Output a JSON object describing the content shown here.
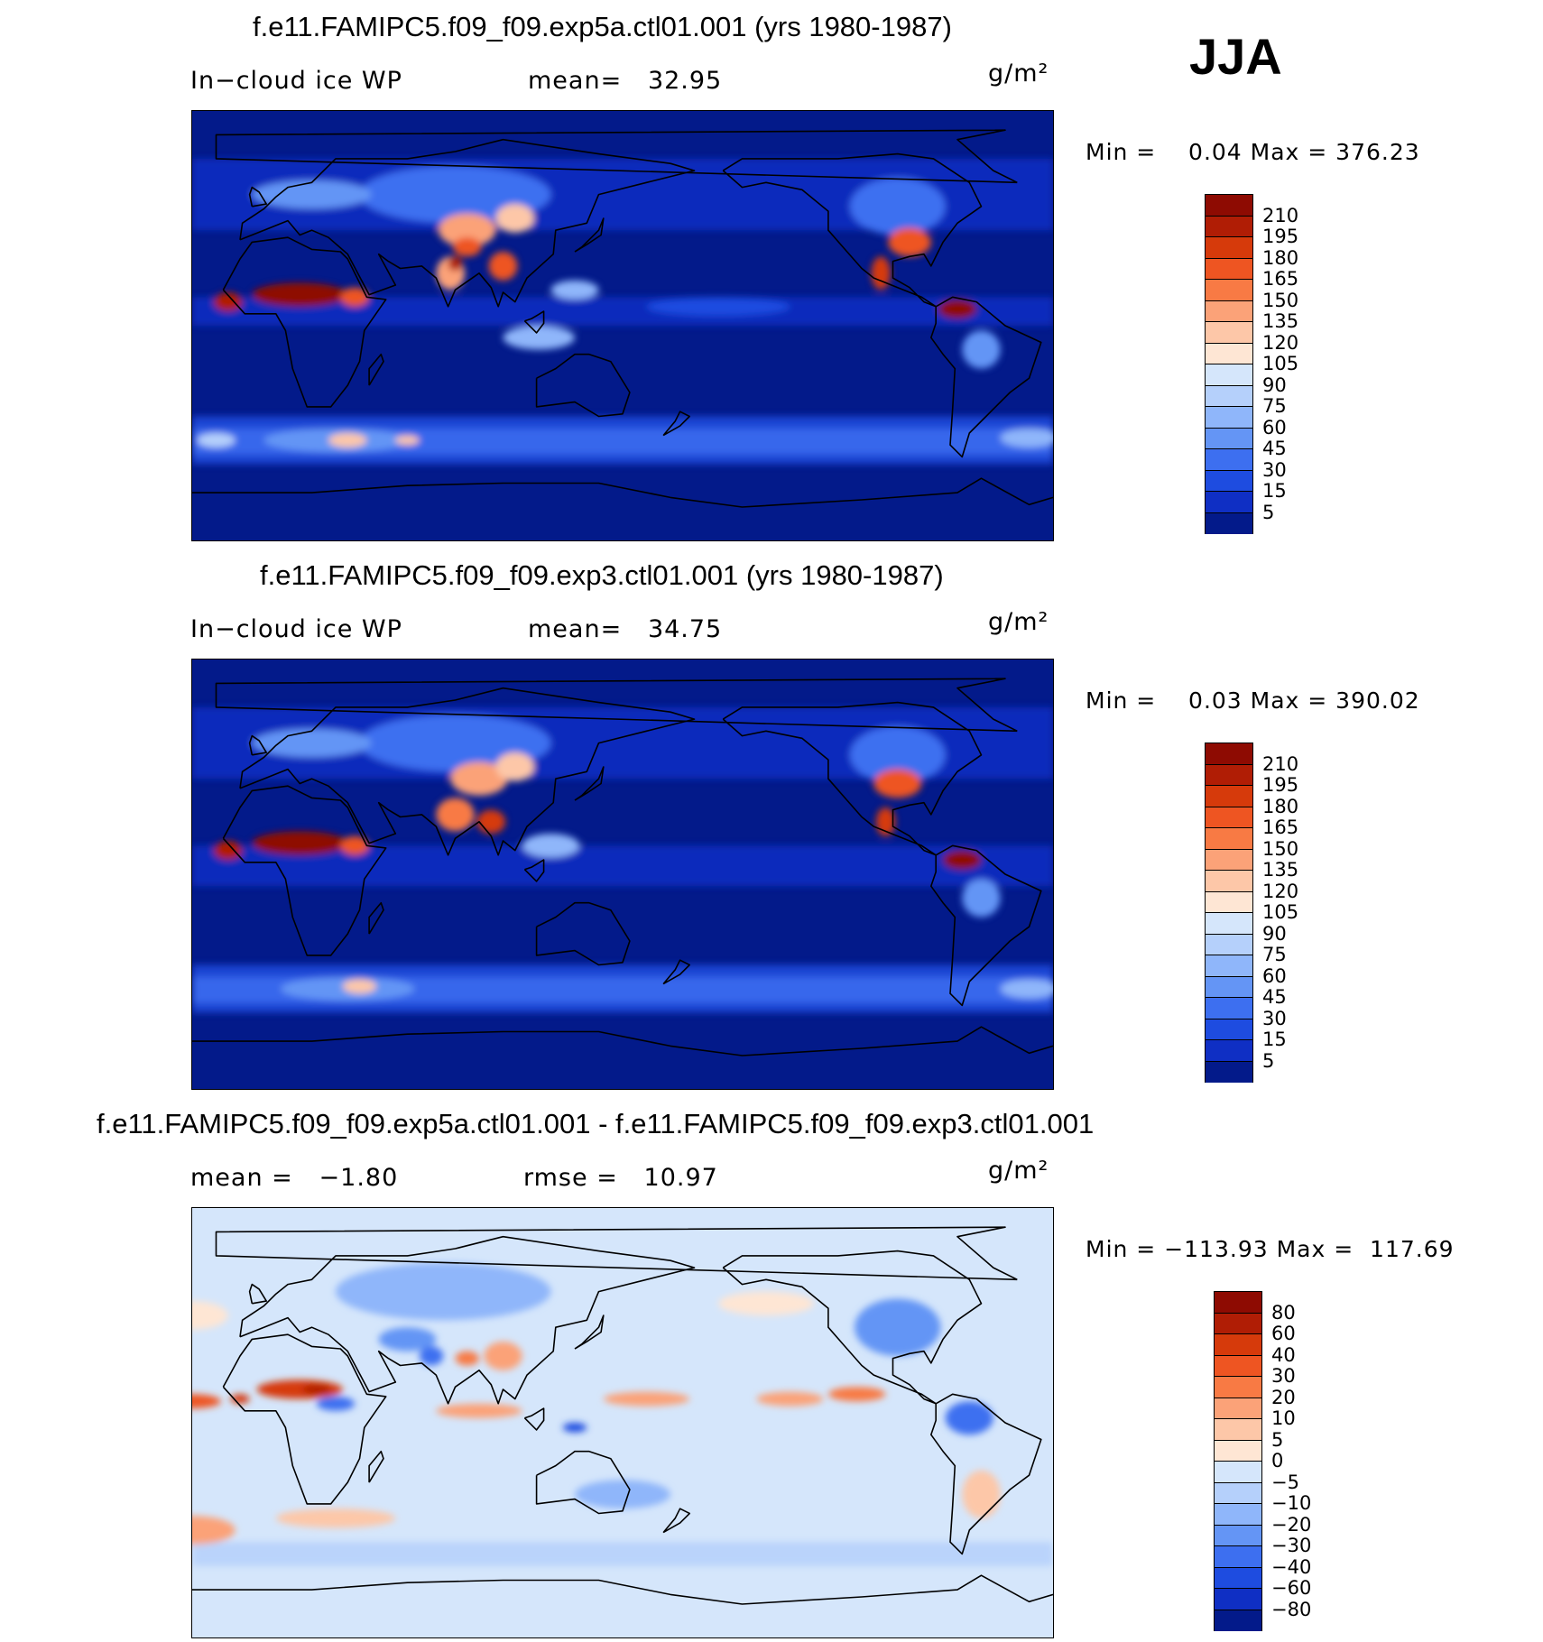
{
  "season": "JJA",
  "panels": [
    {
      "title": "f.e11.FAMIPC5.f09_f09.exp5a.ctl01.001 (yrs 1980-1987)",
      "left_label": "In−cloud ice WP",
      "center_label": "mean=   32.95",
      "units": "g/m²",
      "minmax": "Min =    0.04 Max = 376.23",
      "colorbar": {
        "labels": [
          "210",
          "195",
          "180",
          "165",
          "150",
          "135",
          "120",
          "105",
          "90",
          "75",
          "60",
          "45",
          "30",
          "15",
          "5"
        ],
        "colors": [
          "#8e0b02",
          "#b01d05",
          "#d63a0b",
          "#ee5522",
          "#f87a44",
          "#fba278",
          "#fdc7a8",
          "#fee6d4",
          "#d5e6fb",
          "#b5d0fb",
          "#8fb6fa",
          "#6495f5",
          "#3d6ff0",
          "#1e4ce0",
          "#0f2fc4",
          "#031a8a"
        ]
      },
      "map": {
        "ocean_color": "#031a8a",
        "features": [
          {
            "type": "band",
            "color": "#1e4ce0",
            "lat": [
              -58,
              -38
            ]
          },
          {
            "type": "band",
            "color": "#3d6ff0",
            "lat": [
              -54,
              -43
            ]
          },
          {
            "type": "band",
            "color": "#0f2fc4",
            "lat": [
              40,
              70
            ]
          },
          {
            "type": "band",
            "color": "#0f2fc4",
            "lat": [
              0,
              12
            ]
          },
          {
            "type": "blob",
            "color": "#1e4ce0",
            "lon": -170,
            "lat": 8,
            "rx": 30,
            "ry": 4
          },
          {
            "type": "blob",
            "color": "#6495f5",
            "lon": 30,
            "lat": -48,
            "rx": 30,
            "ry": 5
          },
          {
            "type": "blob",
            "color": "#fdc7a8",
            "lon": 35,
            "lat": -48,
            "rx": 8,
            "ry": 3
          },
          {
            "type": "blob",
            "color": "#fdc7a8",
            "lon": 60,
            "lat": -48,
            "rx": 5,
            "ry": 2
          },
          {
            "type": "blob",
            "color": "#8fb6fa",
            "lon": -40,
            "lat": -47,
            "rx": 12,
            "ry": 4
          },
          {
            "type": "blob",
            "color": "#b5d0fb",
            "lon": -20,
            "lat": -48,
            "rx": 8,
            "ry": 3
          },
          {
            "type": "blob",
            "color": "#3d6ff0",
            "lon": 80,
            "lat": 55,
            "rx": 40,
            "ry": 12
          },
          {
            "type": "blob",
            "color": "#6495f5",
            "lon": 20,
            "lat": 55,
            "rx": 25,
            "ry": 6
          },
          {
            "type": "blob",
            "color": "#fba278",
            "lon": 85,
            "lat": 40,
            "rx": 12,
            "ry": 7
          },
          {
            "type": "blob",
            "color": "#ee5522",
            "lon": 85,
            "lat": 33,
            "rx": 6,
            "ry": 4
          },
          {
            "type": "blob",
            "color": "#fdc7a8",
            "lon": 105,
            "lat": 45,
            "rx": 8,
            "ry": 6
          },
          {
            "type": "blob",
            "color": "#fba278",
            "lon": 78,
            "lat": 22,
            "rx": 6,
            "ry": 7
          },
          {
            "type": "blob",
            "color": "#b01d05",
            "lon": 80,
            "lat": 26,
            "rx": 3,
            "ry": 3
          },
          {
            "type": "blob",
            "color": "#ee5522",
            "lon": 100,
            "lat": 25,
            "rx": 6,
            "ry": 6
          },
          {
            "type": "blob",
            "color": "#8e0b02",
            "lon": 15,
            "lat": 13,
            "rx": 20,
            "ry": 5
          },
          {
            "type": "blob",
            "color": "#ee5522",
            "lon": 38,
            "lat": 12,
            "rx": 6,
            "ry": 4
          },
          {
            "type": "blob",
            "color": "#8fb6fa",
            "lon": 130,
            "lat": 15,
            "rx": 10,
            "ry": 4
          },
          {
            "type": "blob",
            "color": "#3d6ff0",
            "lon": -95,
            "lat": 50,
            "rx": 20,
            "ry": 12
          },
          {
            "type": "blob",
            "color": "#ee5522",
            "lon": -90,
            "lat": 35,
            "rx": 9,
            "ry": 6
          },
          {
            "type": "blob",
            "color": "#d63a0b",
            "lon": -102,
            "lat": 22,
            "rx": 4,
            "ry": 7
          },
          {
            "type": "blob",
            "color": "#8e0b02",
            "lon": -70,
            "lat": 7,
            "rx": 8,
            "ry": 4
          },
          {
            "type": "blob",
            "color": "#6495f5",
            "lon": -60,
            "lat": -10,
            "rx": 8,
            "ry": 8
          },
          {
            "type": "blob",
            "color": "#b01d05",
            "lon": -15,
            "lat": 10,
            "rx": 6,
            "ry": 4
          },
          {
            "type": "blob",
            "color": "#8fb6fa",
            "lon": 115,
            "lat": -5,
            "rx": 15,
            "ry": 5
          }
        ]
      }
    },
    {
      "title": "f.e11.FAMIPC5.f09_f09.exp3.ctl01.001 (yrs 1980-1987)",
      "left_label": "In−cloud ice WP",
      "center_label": "mean=   34.75",
      "units": "g/m²",
      "minmax": "Min =    0.03 Max = 390.02",
      "colorbar": {
        "labels": [
          "210",
          "195",
          "180",
          "165",
          "150",
          "135",
          "120",
          "105",
          "90",
          "75",
          "60",
          "45",
          "30",
          "15",
          "5"
        ],
        "colors": [
          "#8e0b02",
          "#b01d05",
          "#d63a0b",
          "#ee5522",
          "#f87a44",
          "#fba278",
          "#fdc7a8",
          "#fee6d4",
          "#d5e6fb",
          "#b5d0fb",
          "#8fb6fa",
          "#6495f5",
          "#3d6ff0",
          "#1e4ce0",
          "#0f2fc4",
          "#031a8a"
        ]
      },
      "map": {
        "ocean_color": "#031a8a",
        "features": [
          {
            "type": "band",
            "color": "#1e4ce0",
            "lat": [
              -58,
              -38
            ]
          },
          {
            "type": "band",
            "color": "#3d6ff0",
            "lat": [
              -54,
              -43
            ]
          },
          {
            "type": "band",
            "color": "#0f2fc4",
            "lat": [
              40,
              70
            ]
          },
          {
            "type": "band",
            "color": "#0f2fc4",
            "lat": [
              -5,
              12
            ]
          },
          {
            "type": "blob",
            "color": "#6495f5",
            "lon": 35,
            "lat": -48,
            "rx": 28,
            "ry": 5
          },
          {
            "type": "blob",
            "color": "#fdc7a8",
            "lon": 40,
            "lat": -47,
            "rx": 7,
            "ry": 3
          },
          {
            "type": "blob",
            "color": "#8fb6fa",
            "lon": -40,
            "lat": -48,
            "rx": 12,
            "ry": 4
          },
          {
            "type": "blob",
            "color": "#3d6ff0",
            "lon": 80,
            "lat": 55,
            "rx": 40,
            "ry": 12
          },
          {
            "type": "blob",
            "color": "#6495f5",
            "lon": 20,
            "lat": 55,
            "rx": 25,
            "ry": 6
          },
          {
            "type": "blob",
            "color": "#fba278",
            "lon": 90,
            "lat": 40,
            "rx": 12,
            "ry": 7
          },
          {
            "type": "blob",
            "color": "#fdc7a8",
            "lon": 105,
            "lat": 45,
            "rx": 8,
            "ry": 6
          },
          {
            "type": "blob",
            "color": "#f87a44",
            "lon": 80,
            "lat": 25,
            "rx": 8,
            "ry": 7
          },
          {
            "type": "blob",
            "color": "#d63a0b",
            "lon": 95,
            "lat": 22,
            "rx": 6,
            "ry": 5
          },
          {
            "type": "blob",
            "color": "#8e0b02",
            "lon": 15,
            "lat": 13,
            "rx": 20,
            "ry": 5
          },
          {
            "type": "blob",
            "color": "#ee5522",
            "lon": 38,
            "lat": 12,
            "rx": 6,
            "ry": 4
          },
          {
            "type": "blob",
            "color": "#8fb6fa",
            "lon": 120,
            "lat": 12,
            "rx": 12,
            "ry": 5
          },
          {
            "type": "blob",
            "color": "#3d6ff0",
            "lon": -95,
            "lat": 50,
            "rx": 20,
            "ry": 12
          },
          {
            "type": "blob",
            "color": "#ee5522",
            "lon": -95,
            "lat": 38,
            "rx": 10,
            "ry": 6
          },
          {
            "type": "blob",
            "color": "#d63a0b",
            "lon": -100,
            "lat": 22,
            "rx": 4,
            "ry": 6
          },
          {
            "type": "blob",
            "color": "#8e0b02",
            "lon": -68,
            "lat": 6,
            "rx": 8,
            "ry": 4
          },
          {
            "type": "blob",
            "color": "#6495f5",
            "lon": -60,
            "lat": -10,
            "rx": 8,
            "ry": 8
          },
          {
            "type": "blob",
            "color": "#b01d05",
            "lon": -15,
            "lat": 10,
            "rx": 6,
            "ry": 4
          }
        ]
      }
    },
    {
      "title": "f.e11.FAMIPC5.f09_f09.exp5a.ctl01.001 - f.e11.FAMIPC5.f09_f09.exp3.ctl01.001",
      "left_label": "mean =   −1.80",
      "center_label": "rmse =   10.97",
      "units": "g/m²",
      "minmax": "Min = −113.93 Max =  117.69",
      "colorbar": {
        "labels": [
          "80",
          "60",
          "40",
          "30",
          "20",
          "10",
          "5",
          "0",
          "−5",
          "−10",
          "−20",
          "−30",
          "−40",
          "−60",
          "−80"
        ],
        "colors": [
          "#8e0b02",
          "#b01d05",
          "#d63a0b",
          "#ee5522",
          "#f87a44",
          "#fba278",
          "#fdc7a8",
          "#fee6d4",
          "#d5e6fb",
          "#b5d0fb",
          "#8fb6fa",
          "#6495f5",
          "#3d6ff0",
          "#1e4ce0",
          "#0f2fc4",
          "#031a8a"
        ]
      },
      "map": {
        "ocean_color": "#d5e6fb",
        "features": [
          {
            "type": "band",
            "color": "#b5d0fb",
            "lat": [
              -60,
              -50
            ]
          },
          {
            "type": "blob",
            "color": "#8fb6fa",
            "lon": 75,
            "lat": 55,
            "rx": 45,
            "ry": 12
          },
          {
            "type": "blob",
            "color": "#6495f5",
            "lon": 60,
            "lat": 35,
            "rx": 12,
            "ry": 5
          },
          {
            "type": "blob",
            "color": "#3d6ff0",
            "lon": 70,
            "lat": 28,
            "rx": 5,
            "ry": 4
          },
          {
            "type": "blob",
            "color": "#d63a0b",
            "lon": 15,
            "lat": 14,
            "rx": 18,
            "ry": 4
          },
          {
            "type": "blob",
            "color": "#b01d05",
            "lon": 22,
            "lat": 14,
            "rx": 6,
            "ry": 2
          },
          {
            "type": "blob",
            "color": "#3d6ff0",
            "lon": 30,
            "lat": 8,
            "rx": 8,
            "ry": 3
          },
          {
            "type": "blob",
            "color": "#f87a44",
            "lon": 85,
            "lat": 27,
            "rx": 5,
            "ry": 3
          },
          {
            "type": "blob",
            "color": "#fba278",
            "lon": 100,
            "lat": 28,
            "rx": 8,
            "ry": 6
          },
          {
            "type": "blob",
            "color": "#fba278",
            "lon": 160,
            "lat": 10,
            "rx": 18,
            "ry": 3
          },
          {
            "type": "blob",
            "color": "#fba278",
            "lon": -140,
            "lat": 10,
            "rx": 14,
            "ry": 3
          },
          {
            "type": "blob",
            "color": "#fba278",
            "lon": 90,
            "lat": 5,
            "rx": 18,
            "ry": 3
          },
          {
            "type": "blob",
            "color": "#f87a44",
            "lon": -112,
            "lat": 12,
            "rx": 12,
            "ry": 3
          },
          {
            "type": "blob",
            "color": "#ee5522",
            "lon": -30,
            "lat": 9,
            "rx": 12,
            "ry": 3
          },
          {
            "type": "blob",
            "color": "#d63a0b",
            "lon": -10,
            "lat": 10,
            "rx": 4,
            "ry": 2
          },
          {
            "type": "blob",
            "color": "#6495f5",
            "lon": -95,
            "lat": 40,
            "rx": 18,
            "ry": 12
          },
          {
            "type": "blob",
            "color": "#3d6ff0",
            "lon": -65,
            "lat": 2,
            "rx": 10,
            "ry": 7
          },
          {
            "type": "blob",
            "color": "#fba278",
            "lon": -30,
            "lat": -45,
            "rx": 18,
            "ry": 6
          },
          {
            "type": "blob",
            "color": "#fdc7a8",
            "lon": 30,
            "lat": -40,
            "rx": 25,
            "ry": 4
          },
          {
            "type": "blob",
            "color": "#fdc7a8",
            "lon": -60,
            "lat": -30,
            "rx": 8,
            "ry": 10
          },
          {
            "type": "blob",
            "color": "#8fb6fa",
            "lon": 150,
            "lat": -30,
            "rx": 20,
            "ry": 6
          },
          {
            "type": "blob",
            "color": "#fee6d4",
            "lon": -150,
            "lat": 50,
            "rx": 20,
            "ry": 5
          },
          {
            "type": "blob",
            "color": "#fee6d4",
            "lon": -30,
            "lat": 45,
            "rx": 15,
            "ry": 6
          },
          {
            "type": "blob",
            "color": "#1e4ce0",
            "lon": 130,
            "lat": -2,
            "rx": 5,
            "ry": 2
          }
        ]
      }
    }
  ]
}
